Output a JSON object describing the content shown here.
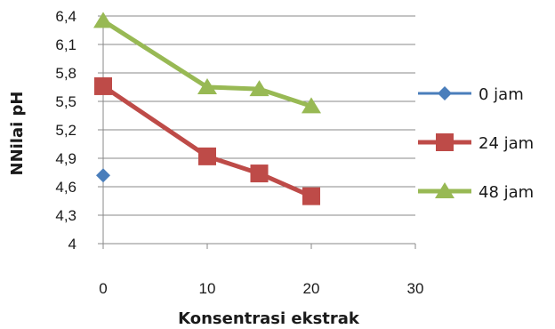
{
  "chart_data": {
    "type": "line",
    "title": "",
    "xlabel": "Konsentrasi ekstrak",
    "ylabel": "NNilai pH",
    "xlim": [
      0,
      30
    ],
    "ylim": [
      4,
      6.4
    ],
    "x_ticks": [
      "0",
      "10",
      "20",
      "30"
    ],
    "y_ticks": [
      "4",
      "4,3",
      "4,6",
      "4,9",
      "5,2",
      "5,5",
      "5,8",
      "6,1",
      "6,4"
    ],
    "grid": "horizontal",
    "legend": "right",
    "series": [
      {
        "name": "0 jam",
        "color": "#4a7ebb",
        "marker": "diamond",
        "x": [
          0
        ],
        "y": [
          4.72
        ]
      },
      {
        "name": "24 jam",
        "color": "#be4b48",
        "marker": "square",
        "x": [
          0,
          10,
          15,
          20
        ],
        "y": [
          5.66,
          4.92,
          4.74,
          4.5
        ]
      },
      {
        "name": "48 jam",
        "color": "#98b954",
        "marker": "triangle",
        "x": [
          0,
          10,
          15,
          20
        ],
        "y": [
          6.35,
          5.65,
          5.63,
          5.45
        ]
      }
    ]
  }
}
